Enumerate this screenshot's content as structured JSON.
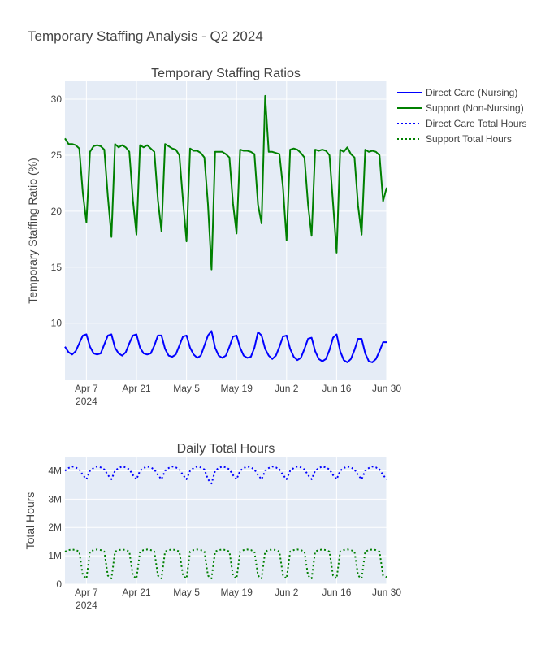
{
  "title": "Temporary Staffing Analysis - Q2 2024",
  "chart_data": [
    {
      "type": "line",
      "title": "Temporary Staffing Ratios",
      "xlabel": "",
      "ylabel": "Temporary Staffing Ratio (%)",
      "x_start": "2024-04-01",
      "x_end": "2024-06-30",
      "xlim": [
        "2024-04-01",
        "2024-06-30"
      ],
      "ylim": [
        4.9,
        31.6
      ],
      "grid": true,
      "x_ticks": [
        {
          "date": "2024-04-07",
          "label": "Apr 7",
          "sub": "2024"
        },
        {
          "date": "2024-04-21",
          "label": "Apr 21",
          "sub": ""
        },
        {
          "date": "2024-05-05",
          "label": "May 5",
          "sub": ""
        },
        {
          "date": "2024-05-19",
          "label": "May 19",
          "sub": ""
        },
        {
          "date": "2024-06-02",
          "label": "Jun 2",
          "sub": ""
        },
        {
          "date": "2024-06-16",
          "label": "Jun 16",
          "sub": ""
        },
        {
          "date": "2024-06-30",
          "label": "Jun 30",
          "sub": ""
        }
      ],
      "y_ticks": [
        10,
        15,
        20,
        25,
        30
      ],
      "series": [
        {
          "name": "Direct Care (Nursing)",
          "color": "#0000ff",
          "dash": "solid",
          "values": [
            7.9,
            7.4,
            7.2,
            7.5,
            8.2,
            8.9,
            9.0,
            7.9,
            7.3,
            7.2,
            7.3,
            8.1,
            8.9,
            9.0,
            7.8,
            7.3,
            7.1,
            7.4,
            8.2,
            8.9,
            9.0,
            7.8,
            7.3,
            7.2,
            7.3,
            8.0,
            8.9,
            8.9,
            7.7,
            7.1,
            7.0,
            7.2,
            8.0,
            8.8,
            8.9,
            7.8,
            7.2,
            6.9,
            7.1,
            8.0,
            8.9,
            9.3,
            7.8,
            7.1,
            6.9,
            7.1,
            7.9,
            8.8,
            8.9,
            7.8,
            7.1,
            6.9,
            7.0,
            7.8,
            9.2,
            8.9,
            7.7,
            7.1,
            6.8,
            7.1,
            7.9,
            8.8,
            8.9,
            7.7,
            7.0,
            6.7,
            6.9,
            7.7,
            8.6,
            8.7,
            7.5,
            6.8,
            6.6,
            6.8,
            7.6,
            8.7,
            9.0,
            7.5,
            6.7,
            6.5,
            6.8,
            7.6,
            8.6,
            8.6,
            7.3,
            6.6,
            6.5,
            6.8,
            7.5,
            8.3,
            8.3
          ]
        },
        {
          "name": "Support (Non-Nursing)",
          "color": "#008000",
          "dash": "solid",
          "values": [
            26.5,
            26.0,
            26.0,
            25.9,
            25.6,
            21.6,
            19.0,
            25.3,
            25.8,
            25.9,
            25.8,
            25.5,
            21.3,
            17.7,
            26.0,
            25.7,
            25.9,
            25.7,
            25.3,
            21.0,
            17.9,
            25.9,
            25.7,
            25.9,
            25.6,
            25.3,
            21.0,
            18.2,
            26.0,
            25.8,
            25.6,
            25.5,
            25.0,
            21.0,
            17.3,
            25.6,
            25.4,
            25.4,
            25.2,
            24.8,
            20.6,
            14.8,
            25.3,
            25.3,
            25.3,
            25.1,
            24.8,
            20.7,
            18.0,
            25.5,
            25.4,
            25.4,
            25.3,
            25.1,
            20.6,
            18.9,
            30.3,
            25.3,
            25.3,
            25.2,
            25.1,
            22.1,
            17.4,
            25.5,
            25.6,
            25.5,
            25.2,
            24.8,
            20.6,
            17.8,
            25.5,
            25.4,
            25.5,
            25.4,
            25.0,
            20.7,
            16.3,
            25.5,
            25.3,
            25.7,
            25.1,
            24.8,
            20.5,
            17.9,
            25.5,
            25.3,
            25.4,
            25.3,
            25.0,
            20.9,
            22.1
          ]
        }
      ],
      "legend": {
        "placement": "top-right"
      }
    },
    {
      "type": "line",
      "title": "Daily Total Hours",
      "xlabel": "",
      "ylabel": "Total Hours",
      "x_start": "2024-04-01",
      "x_end": "2024-06-30",
      "xlim": [
        "2024-04-01",
        "2024-06-30"
      ],
      "ylim": [
        0,
        4.5
      ],
      "y_unit": "M",
      "grid": true,
      "x_ticks": [
        {
          "date": "2024-04-07",
          "label": "Apr 7",
          "sub": "2024"
        },
        {
          "date": "2024-04-21",
          "label": "Apr 21",
          "sub": ""
        },
        {
          "date": "2024-05-05",
          "label": "May 5",
          "sub": ""
        },
        {
          "date": "2024-05-19",
          "label": "May 19",
          "sub": ""
        },
        {
          "date": "2024-06-02",
          "label": "Jun 2",
          "sub": ""
        },
        {
          "date": "2024-06-16",
          "label": "Jun 16",
          "sub": ""
        },
        {
          "date": "2024-06-30",
          "label": "Jun 30",
          "sub": ""
        }
      ],
      "y_ticks": [
        {
          "value": 0,
          "label": "0"
        },
        {
          "value": 1,
          "label": "1M"
        },
        {
          "value": 2,
          "label": "2M"
        },
        {
          "value": 3,
          "label": "3M"
        },
        {
          "value": 4,
          "label": "4M"
        }
      ],
      "series": [
        {
          "name": "Direct Care Total Hours",
          "color": "#0000ff",
          "dash": "dot",
          "values": [
            4.0,
            4.1,
            4.15,
            4.12,
            4.05,
            3.85,
            3.7,
            4.0,
            4.1,
            4.15,
            4.12,
            4.05,
            3.85,
            3.7,
            4.0,
            4.1,
            4.15,
            4.12,
            4.05,
            3.85,
            3.7,
            4.0,
            4.1,
            4.15,
            4.12,
            4.05,
            3.85,
            3.7,
            4.0,
            4.1,
            4.15,
            4.12,
            4.05,
            3.85,
            3.7,
            4.0,
            4.1,
            4.15,
            4.12,
            4.05,
            3.7,
            3.55,
            4.0,
            4.1,
            4.15,
            4.12,
            4.05,
            3.85,
            3.7,
            4.0,
            4.1,
            4.15,
            4.12,
            4.05,
            3.85,
            3.7,
            4.0,
            4.1,
            4.15,
            4.12,
            4.05,
            3.85,
            3.7,
            4.0,
            4.1,
            4.15,
            4.12,
            4.05,
            3.85,
            3.7,
            4.0,
            4.1,
            4.15,
            4.12,
            4.05,
            3.85,
            3.7,
            4.0,
            4.1,
            4.15,
            4.12,
            4.05,
            3.85,
            3.7,
            4.0,
            4.1,
            4.15,
            4.12,
            4.05,
            3.85,
            3.7
          ]
        },
        {
          "name": "Support Total Hours",
          "color": "#008000",
          "dash": "dot",
          "values": [
            1.15,
            1.2,
            1.22,
            1.2,
            1.15,
            0.3,
            0.2,
            1.15,
            1.2,
            1.22,
            1.2,
            1.15,
            0.3,
            0.2,
            1.15,
            1.2,
            1.22,
            1.2,
            1.15,
            0.3,
            0.2,
            1.15,
            1.2,
            1.22,
            1.2,
            1.15,
            0.3,
            0.2,
            1.15,
            1.2,
            1.22,
            1.2,
            1.15,
            0.3,
            0.2,
            1.15,
            1.2,
            1.22,
            1.2,
            1.15,
            0.3,
            0.2,
            1.15,
            1.2,
            1.22,
            1.2,
            1.15,
            0.3,
            0.2,
            1.15,
            1.2,
            1.22,
            1.2,
            1.15,
            0.3,
            0.2,
            1.15,
            1.2,
            1.22,
            1.2,
            1.15,
            0.3,
            0.2,
            1.15,
            1.2,
            1.22,
            1.2,
            1.15,
            0.3,
            0.2,
            1.15,
            1.2,
            1.22,
            1.2,
            1.15,
            0.3,
            0.2,
            1.15,
            1.2,
            1.22,
            1.2,
            1.15,
            0.3,
            0.2,
            1.15,
            1.2,
            1.22,
            1.2,
            1.15,
            0.3,
            0.25
          ]
        }
      ]
    }
  ],
  "legend": [
    {
      "label": "Direct Care (Nursing)",
      "color": "#0000ff",
      "dash": "solid"
    },
    {
      "label": "Support (Non-Nursing)",
      "color": "#008000",
      "dash": "solid"
    },
    {
      "label": "Direct Care Total Hours",
      "color": "#0000ff",
      "dash": "dot"
    },
    {
      "label": "Support Total Hours",
      "color": "#008000",
      "dash": "dot"
    }
  ],
  "colors": {
    "plot_bg": "#e5ecf6",
    "grid": "#ffffff",
    "text": "#444444"
  }
}
